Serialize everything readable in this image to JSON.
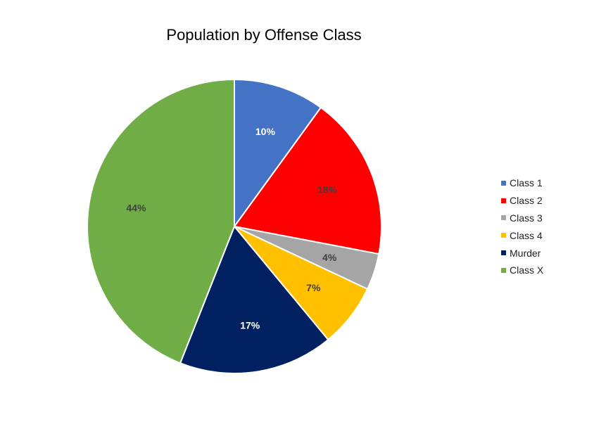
{
  "chart_data": {
    "type": "pie",
    "title": "Population by Offense Class",
    "legend_position": "right",
    "slices": [
      {
        "label": "Class 1",
        "value": 10,
        "display": "10%",
        "color": "#4472C4",
        "label_color": "#ffffff"
      },
      {
        "label": "Class 2",
        "value": 18,
        "display": "18%",
        "color": "#FF0000",
        "label_color": "#404040"
      },
      {
        "label": "Class 3",
        "value": 4,
        "display": "4%",
        "color": "#A5A5A5",
        "label_color": "#404040"
      },
      {
        "label": "Class 4",
        "value": 7,
        "display": "7%",
        "color": "#FFC000",
        "label_color": "#404040"
      },
      {
        "label": "Murder",
        "value": 17,
        "display": "17%",
        "color": "#002060",
        "label_color": "#ffffff"
      },
      {
        "label": "Class X",
        "value": 44,
        "display": "44%",
        "color": "#70AD47",
        "label_color": "#404040"
      }
    ]
  }
}
